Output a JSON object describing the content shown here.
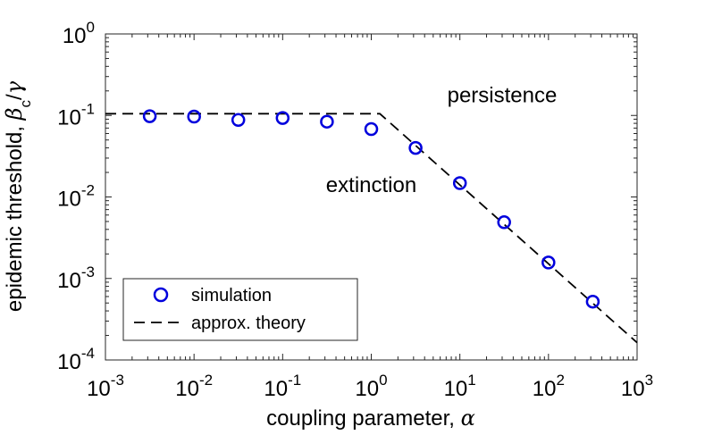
{
  "chart_data": {
    "type": "scatter",
    "x_scale": "log",
    "y_scale": "log",
    "xlim": [
      0.001,
      1000
    ],
    "ylim": [
      0.0001,
      1
    ],
    "xlabel": "coupling parameter, ",
    "xlabel_symbol": "α",
    "ylabel": "epidemic threshold, ",
    "ylabel_symbol_beta": "β",
    "ylabel_subscript": "c",
    "ylabel_slash": "/",
    "ylabel_symbol_gamma": "γ",
    "x_ticks": [
      {
        "value": 0.001,
        "base": "10",
        "exp": "-3"
      },
      {
        "value": 0.01,
        "base": "10",
        "exp": "-2"
      },
      {
        "value": 0.1,
        "base": "10",
        "exp": "-1"
      },
      {
        "value": 1,
        "base": "10",
        "exp": "0"
      },
      {
        "value": 10,
        "base": "10",
        "exp": "1"
      },
      {
        "value": 100,
        "base": "10",
        "exp": "2"
      },
      {
        "value": 1000,
        "base": "10",
        "exp": "3"
      }
    ],
    "y_ticks": [
      {
        "value": 0.0001,
        "base": "10",
        "exp": "-4"
      },
      {
        "value": 0.001,
        "base": "10",
        "exp": "-3"
      },
      {
        "value": 0.01,
        "base": "10",
        "exp": "-2"
      },
      {
        "value": 0.1,
        "base": "10",
        "exp": "-1"
      },
      {
        "value": 1,
        "base": "10",
        "exp": "0"
      }
    ],
    "series": [
      {
        "name": "simulation",
        "style": "circle-markers",
        "color": "#0000dd",
        "x": [
          0.00316,
          0.01,
          0.0316,
          0.1,
          0.316,
          1,
          3.16,
          10,
          31.6,
          100,
          316
        ],
        "y": [
          0.098,
          0.097,
          0.088,
          0.093,
          0.084,
          0.068,
          0.04,
          0.0148,
          0.0049,
          0.00157,
          0.00052
        ]
      },
      {
        "name": "approx. theory",
        "style": "dashed-line",
        "color": "#000000",
        "x": [
          0.001,
          1.25,
          1000
        ],
        "y": [
          0.105,
          0.105,
          0.000163
        ]
      }
    ],
    "annotations": [
      {
        "text": "persistence",
        "x": 30,
        "y": 0.145
      },
      {
        "text": "extinction",
        "x": 1,
        "y": 0.0115
      }
    ],
    "legend": {
      "position": "bottom-left",
      "entries": [
        "simulation",
        "approx. theory"
      ]
    }
  }
}
